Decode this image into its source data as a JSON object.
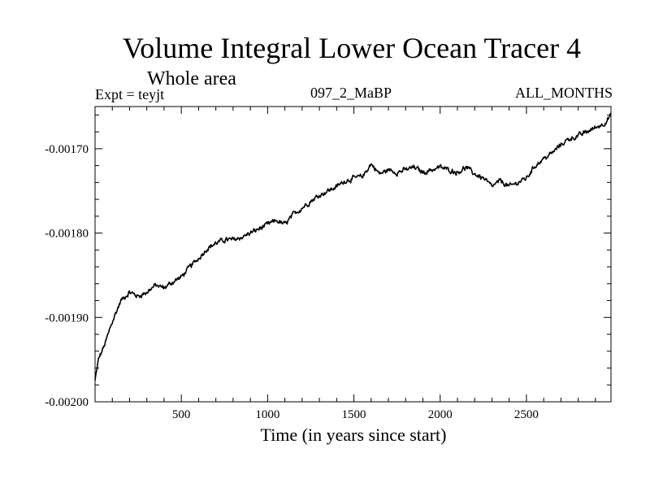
{
  "chart_data": {
    "type": "line",
    "title": "Volume Integral Lower Ocean Tracer 4",
    "subtitle": "Whole area",
    "annotations": {
      "experiment": "Expt = teyjt",
      "period": "097_2_MaBP",
      "months": "ALL_MONTHS"
    },
    "xlabel": "Time (in years since start)",
    "ylabel": "",
    "xlim": [
      0,
      2990
    ],
    "ylim": [
      -0.002,
      -0.00165
    ],
    "xticks": [
      500,
      1000,
      1500,
      2000,
      2500
    ],
    "xtick_labels": [
      "500",
      "1000",
      "1500",
      "2000",
      "2500"
    ],
    "yticks": [
      -0.002,
      -0.0019,
      -0.0018,
      -0.0017
    ],
    "ytick_labels": [
      "-0.00200",
      "-0.00190",
      "-0.00180",
      "-0.00170"
    ],
    "grid": false,
    "series": [
      {
        "name": "teyjt",
        "x": [
          0,
          20,
          60,
          100,
          150,
          200,
          250,
          300,
          350,
          400,
          450,
          500,
          550,
          600,
          650,
          700,
          750,
          800,
          850,
          900,
          950,
          1000,
          1050,
          1100,
          1150,
          1200,
          1250,
          1300,
          1350,
          1400,
          1450,
          1500,
          1550,
          1600,
          1650,
          1700,
          1750,
          1800,
          1850,
          1900,
          1950,
          2000,
          2050,
          2100,
          2150,
          2200,
          2250,
          2300,
          2350,
          2400,
          2450,
          2500,
          2550,
          2600,
          2650,
          2700,
          2750,
          2800,
          2850,
          2900,
          2950,
          2990
        ],
        "y": [
          -0.001975,
          -0.00195,
          -0.00193,
          -0.001905,
          -0.00188,
          -0.00187,
          -0.001875,
          -0.00187,
          -0.001862,
          -0.001865,
          -0.001858,
          -0.001852,
          -0.00184,
          -0.00183,
          -0.001818,
          -0.001812,
          -0.001808,
          -0.001808,
          -0.001805,
          -0.0018,
          -0.001795,
          -0.00179,
          -0.001785,
          -0.00179,
          -0.001778,
          -0.00177,
          -0.001762,
          -0.001755,
          -0.00175,
          -0.001745,
          -0.001738,
          -0.001735,
          -0.001733,
          -0.001718,
          -0.00173,
          -0.001725,
          -0.001728,
          -0.001725,
          -0.001722,
          -0.001728,
          -0.001725,
          -0.001722,
          -0.001725,
          -0.001728,
          -0.001722,
          -0.00173,
          -0.001735,
          -0.001745,
          -0.001738,
          -0.001745,
          -0.00174,
          -0.001735,
          -0.00172,
          -0.001712,
          -0.001705,
          -0.001695,
          -0.001688,
          -0.001685,
          -0.00168,
          -0.001675,
          -0.00167,
          -0.00166
        ]
      }
    ]
  }
}
